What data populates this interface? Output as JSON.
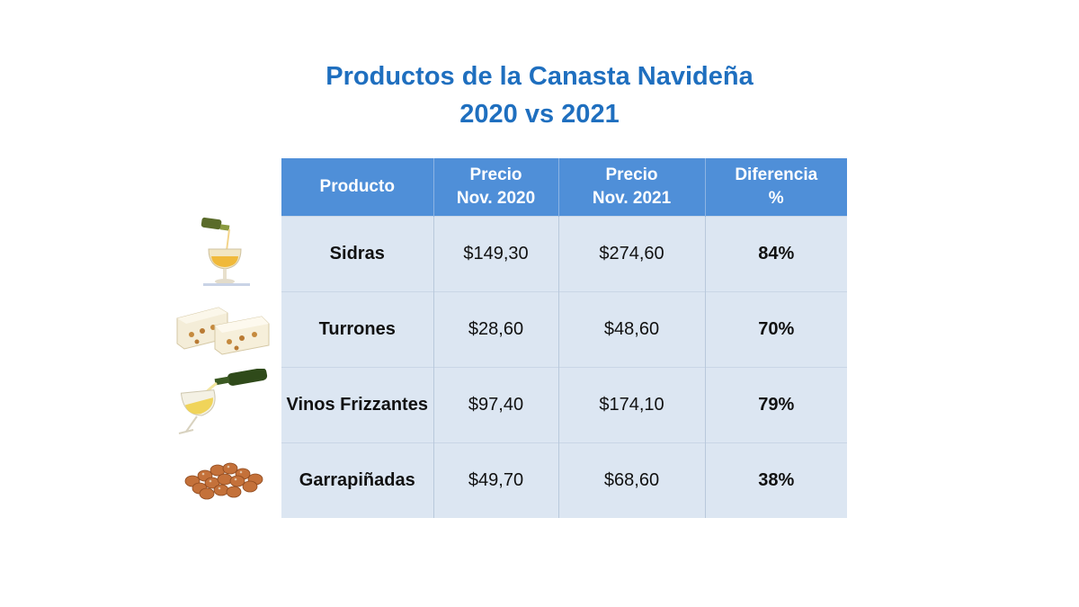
{
  "title": {
    "line1": "Productos de la Canasta Navideña",
    "line2": "2020 vs 2021"
  },
  "table": {
    "headers": [
      [
        "Producto"
      ],
      [
        "Precio",
        "Nov. 2020"
      ],
      [
        "Precio",
        "Nov. 2021"
      ],
      [
        "Diferencia",
        "%"
      ]
    ],
    "rows": [
      {
        "product": "Sidras",
        "price_2020": "$149,30",
        "price_2021": "$274,60",
        "difference": "84%",
        "icon": "cider-glass-icon"
      },
      {
        "product": "Turrones",
        "price_2020": "$28,60",
        "price_2021": "$48,60",
        "difference": "70%",
        "icon": "nougat-icon"
      },
      {
        "product": "Vinos Frizzantes",
        "price_2020": "$97,40",
        "price_2021": "$174,10",
        "difference": "79%",
        "icon": "wine-glass-icon"
      },
      {
        "product": "Garrapiñadas",
        "price_2020": "$49,70",
        "price_2021": "$68,60",
        "difference": "38%",
        "icon": "candied-peanuts-icon"
      }
    ]
  },
  "colors": {
    "title": "#1f6fbf",
    "header_bg": "#4f8fd8",
    "row_bg": "#dce6f2",
    "difference": "#e0141e"
  }
}
